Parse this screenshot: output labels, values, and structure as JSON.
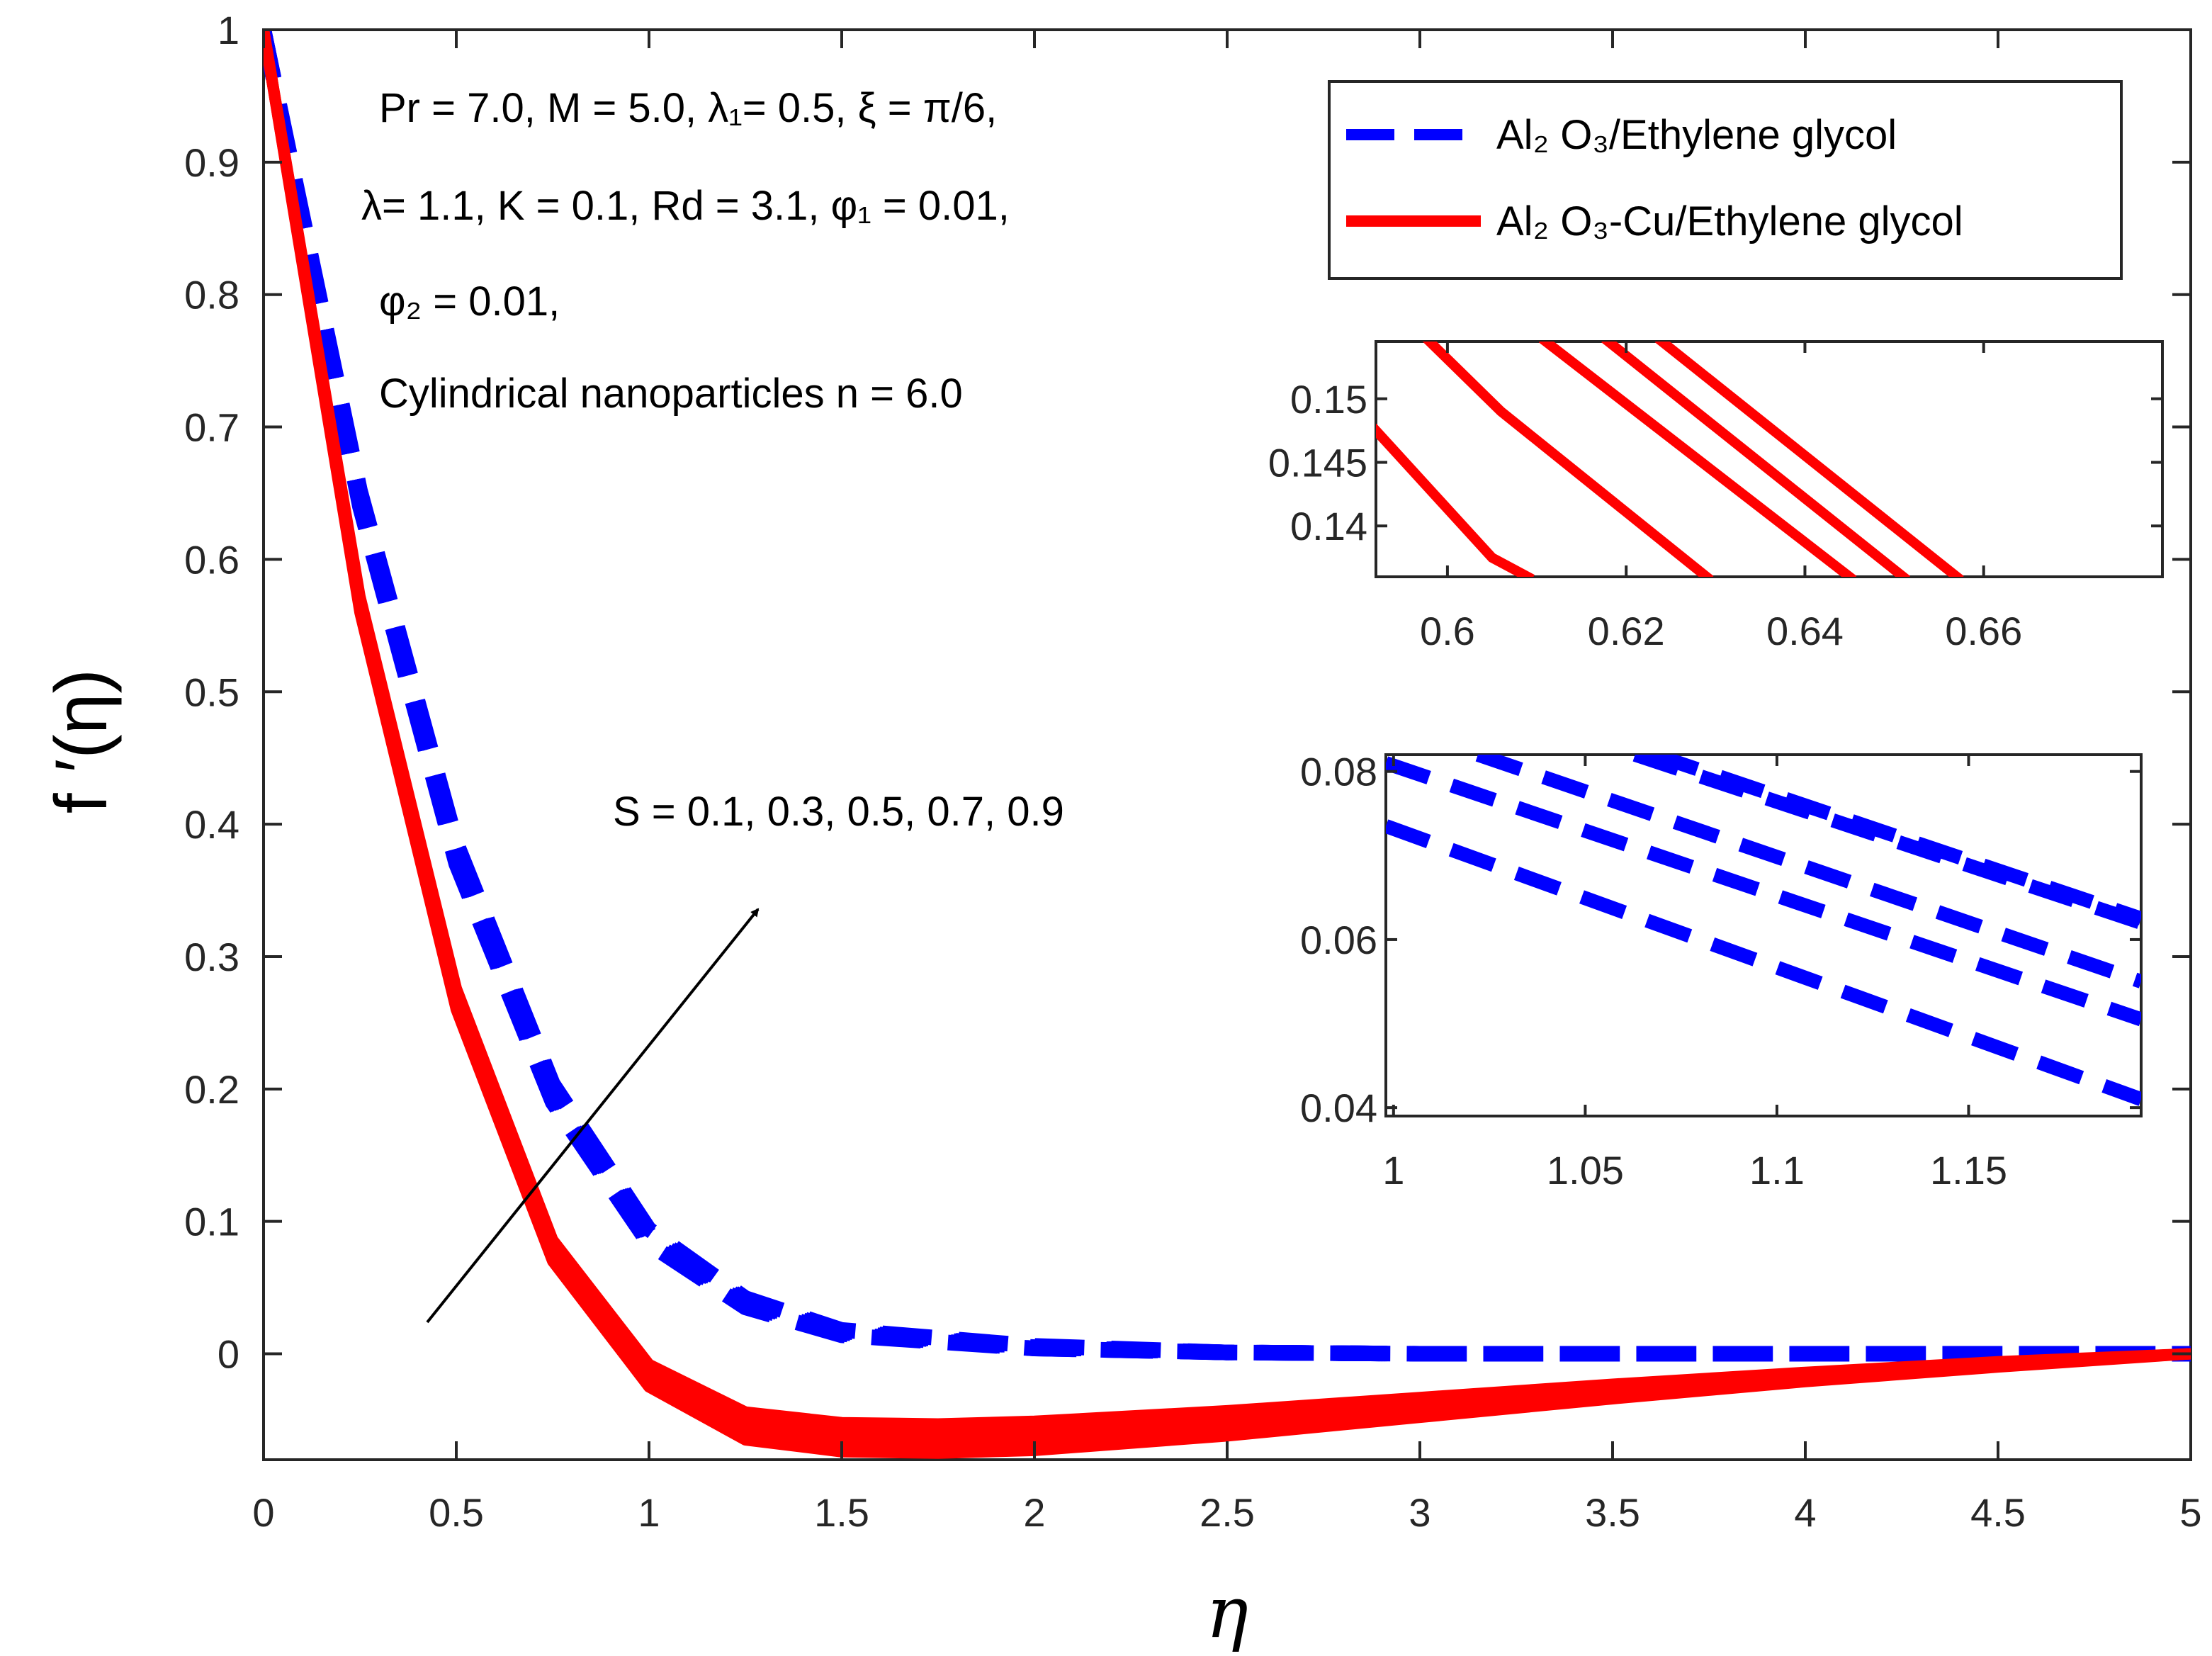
{
  "chart_data": {
    "type": "line",
    "xlabel": "η",
    "ylabel": "f ′(η)",
    "xlim": [
      0,
      5
    ],
    "ylim": [
      -0.08,
      1
    ],
    "xticks": [
      "0",
      "0.5",
      "1",
      "1.5",
      "2",
      "2.5",
      "3",
      "3.5",
      "4",
      "4.5",
      "5"
    ],
    "yticks": [
      "0",
      "0.1",
      "0.2",
      "0.3",
      "0.4",
      "0.5",
      "0.6",
      "0.7",
      "0.8",
      "0.9",
      "1"
    ],
    "parameter_lines": [
      "Pr = 7.0, M = 5.0,  λ₁= 0.5, ξ = π/6,",
      "λ= 1.1, K = 0.1, Rd = 3.1, φ₁ = 0.01,",
      "φ₂ = 0.01,",
      "Cylindrical nanoparticles n = 6.0"
    ],
    "arrow_label": "S = 0.1, 0.3, 0.5, 0.7, 0.9",
    "legend": [
      {
        "label": "Al₂ O₃/Ethylene glycol",
        "style": "dashed",
        "color": "#0000ff"
      },
      {
        "label": "Al₂ O₃-Cu/Ethylene glycol",
        "style": "solid",
        "color": "#ff0000"
      }
    ],
    "S_values": [
      0.1,
      0.3,
      0.5,
      0.7,
      0.9
    ],
    "series": [
      {
        "name": "Al2O3/EG S=0.1",
        "style": "dashed",
        "color": "#0000ff",
        "x": [
          0,
          0.25,
          0.5,
          0.75,
          1,
          1.25,
          1.5,
          2,
          2.5,
          3,
          3.5,
          4,
          4.5,
          5
        ],
        "values": [
          1,
          0.64,
          0.37,
          0.19,
          0.083,
          0.035,
          0.014,
          0.004,
          0.001,
          0,
          0,
          0,
          0,
          0
        ]
      },
      {
        "name": "Al2O3/EG S=0.3",
        "style": "dashed",
        "color": "#0000ff",
        "x": [
          0,
          0.25,
          0.5,
          0.75,
          1,
          1.25,
          1.5,
          2,
          2.5,
          3,
          3.5,
          4,
          4.5,
          5
        ],
        "values": [
          1,
          0.643,
          0.374,
          0.193,
          0.086,
          0.037,
          0.015,
          0.004,
          0.001,
          0,
          0,
          0,
          0,
          0
        ]
      },
      {
        "name": "Al2O3/EG S=0.5",
        "style": "dashed",
        "color": "#0000ff",
        "x": [
          0,
          0.25,
          0.5,
          0.75,
          1,
          1.25,
          1.5,
          2,
          2.5,
          3,
          3.5,
          4,
          4.5,
          5
        ],
        "values": [
          1,
          0.646,
          0.378,
          0.197,
          0.089,
          0.039,
          0.016,
          0.005,
          0.001,
          0,
          0,
          0,
          0,
          0
        ]
      },
      {
        "name": "Al2O3/EG S=0.7",
        "style": "dashed",
        "color": "#0000ff",
        "x": [
          0,
          0.25,
          0.5,
          0.75,
          1,
          1.25,
          1.5,
          2,
          2.5,
          3,
          3.5,
          4,
          4.5,
          5
        ],
        "values": [
          1,
          0.649,
          0.382,
          0.2,
          0.091,
          0.04,
          0.017,
          0.005,
          0.001,
          0,
          0,
          0,
          0,
          0
        ]
      },
      {
        "name": "Al2O3/EG S=0.9",
        "style": "dashed",
        "color": "#0000ff",
        "x": [
          0,
          0.25,
          0.5,
          0.75,
          1,
          1.25,
          1.5,
          2,
          2.5,
          3,
          3.5,
          4,
          4.5,
          5
        ],
        "values": [
          1,
          0.652,
          0.386,
          0.204,
          0.094,
          0.042,
          0.018,
          0.006,
          0.001,
          0,
          0,
          0,
          0,
          0
        ]
      },
      {
        "name": "Al2O3-Cu/EG S=0.1",
        "style": "solid",
        "color": "#ff0000",
        "x": [
          0,
          0.25,
          0.5,
          0.75,
          1,
          1.25,
          1.5,
          1.75,
          2,
          2.5,
          3,
          3.5,
          4,
          4.5,
          5
        ],
        "values": [
          1,
          0.56,
          0.26,
          0.07,
          -0.025,
          -0.065,
          -0.074,
          -0.075,
          -0.073,
          -0.062,
          -0.048,
          -0.034,
          -0.021,
          -0.01,
          0
        ]
      },
      {
        "name": "Al2O3-Cu/EG S=0.3",
        "style": "solid",
        "color": "#ff0000",
        "x": [
          0,
          0.25,
          0.5,
          0.75,
          1,
          1.25,
          1.5,
          1.75,
          2,
          2.5,
          3,
          3.5,
          4,
          4.5,
          5
        ],
        "values": [
          1,
          0.563,
          0.264,
          0.074,
          -0.02,
          -0.059,
          -0.068,
          -0.069,
          -0.067,
          -0.057,
          -0.044,
          -0.031,
          -0.019,
          -0.009,
          0
        ]
      },
      {
        "name": "Al2O3-Cu/EG S=0.5",
        "style": "solid",
        "color": "#ff0000",
        "x": [
          0,
          0.25,
          0.5,
          0.75,
          1,
          1.25,
          1.5,
          1.75,
          2,
          2.5,
          3,
          3.5,
          4,
          4.5,
          5
        ],
        "values": [
          1,
          0.566,
          0.268,
          0.078,
          -0.016,
          -0.054,
          -0.062,
          -0.063,
          -0.061,
          -0.052,
          -0.04,
          -0.028,
          -0.017,
          -0.008,
          0
        ]
      },
      {
        "name": "Al2O3-Cu/EG S=0.7",
        "style": "solid",
        "color": "#ff0000",
        "x": [
          0,
          0.25,
          0.5,
          0.75,
          1,
          1.25,
          1.5,
          1.75,
          2,
          2.5,
          3,
          3.5,
          4,
          4.5,
          5
        ],
        "values": [
          1,
          0.569,
          0.272,
          0.082,
          -0.012,
          -0.049,
          -0.057,
          -0.058,
          -0.056,
          -0.047,
          -0.036,
          -0.025,
          -0.015,
          -0.007,
          0
        ]
      },
      {
        "name": "Al2O3-Cu/EG S=0.9",
        "style": "solid",
        "color": "#ff0000",
        "x": [
          0,
          0.25,
          0.5,
          0.75,
          1,
          1.25,
          1.5,
          1.75,
          2,
          2.5,
          3,
          3.5,
          4,
          4.5,
          5
        ],
        "values": [
          1,
          0.572,
          0.276,
          0.086,
          -0.008,
          -0.044,
          -0.052,
          -0.053,
          -0.051,
          -0.043,
          -0.033,
          -0.023,
          -0.014,
          -0.006,
          0
        ]
      }
    ],
    "insets": [
      {
        "name": "red-zoom",
        "xlim": [
          0.592,
          0.68
        ],
        "ylim": [
          0.136,
          0.1545
        ],
        "xticks": [
          "0.6",
          "0.62",
          "0.64",
          "0.66"
        ],
        "yticks": [
          "0.14",
          "0.145",
          "0.15"
        ],
        "color": "#ff0000",
        "style": "solid",
        "lines": [
          {
            "x": [
              0.592,
              0.605,
              0.609
            ],
            "values": [
              0.1475,
              0.1375,
              0.136
            ]
          },
          {
            "x": [
              0.598,
              0.606,
              0.629
            ],
            "values": [
              0.1545,
              0.149,
              0.136
            ]
          },
          {
            "x": [
              0.611,
              0.645
            ],
            "values": [
              0.1545,
              0.136
            ]
          },
          {
            "x": [
              0.618,
              0.651
            ],
            "values": [
              0.1545,
              0.136
            ]
          },
          {
            "x": [
              0.624,
              0.657
            ],
            "values": [
              0.1545,
              0.136
            ]
          }
        ]
      },
      {
        "name": "blue-zoom",
        "xlim": [
          0.998,
          1.195
        ],
        "ylim": [
          0.039,
          0.082
        ],
        "xticks": [
          "1",
          "1.05",
          "1.1",
          "1.15"
        ],
        "yticks": [
          "0.04",
          "0.06",
          "0.08"
        ],
        "color": "#0000ff",
        "style": "dashed",
        "lines": [
          {
            "x": [
              0.998,
              1.195
            ],
            "values": [
              0.0735,
              0.041
            ]
          },
          {
            "x": [
              0.998,
              1.195
            ],
            "values": [
              0.081,
              0.0505
            ]
          },
          {
            "x": [
              1.022,
              1.195
            ],
            "values": [
              0.082,
              0.055
            ]
          },
          {
            "x": [
              1.063,
              1.195
            ],
            "values": [
              0.082,
              0.062
            ]
          },
          {
            "x": [
              1.068,
              1.195
            ],
            "values": [
              0.082,
              0.0625
            ]
          }
        ]
      }
    ]
  }
}
